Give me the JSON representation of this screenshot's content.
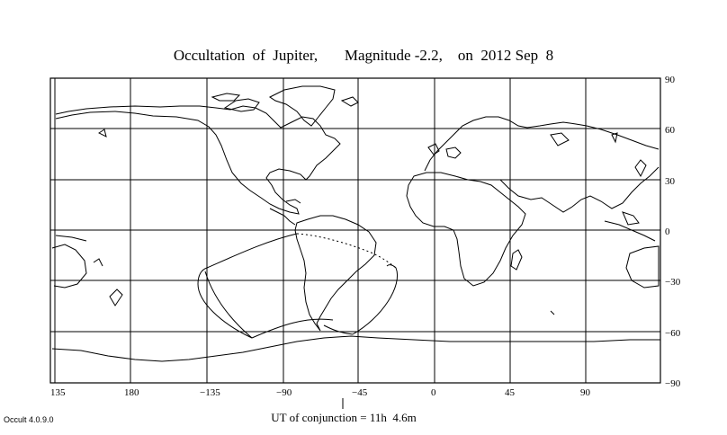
{
  "title": "Occultation  of  Jupiter,       Magnitude -2.2,    on  2012 Sep  8",
  "longitude_labels": [
    "135",
    "180",
    "−135",
    "−90",
    "−45",
    "0",
    "45",
    "90"
  ],
  "latitude_labels": [
    "90",
    "60",
    "30",
    "0",
    "−30",
    "−60",
    "−90"
  ],
  "conjunction_label": "UT of conjunction = 11h  4.6m",
  "software_version": "Occult 4.0.9.0"
}
